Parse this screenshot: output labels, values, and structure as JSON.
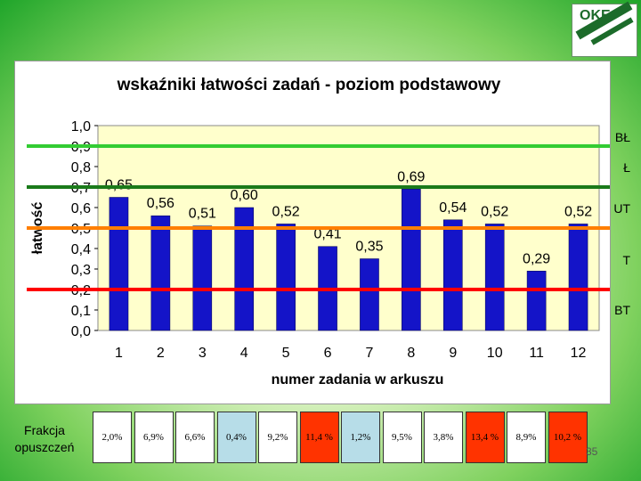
{
  "logo": {
    "text": "OKE"
  },
  "chart_data": {
    "type": "bar",
    "title": "wskaźniki łatwości zadań - poziom podstawowy",
    "xlabel": "numer zadania w arkuszu",
    "ylabel": "łatwość",
    "categories": [
      "1",
      "2",
      "3",
      "4",
      "5",
      "6",
      "7",
      "8",
      "9",
      "10",
      "11",
      "12"
    ],
    "values": [
      0.65,
      0.56,
      0.51,
      0.6,
      0.52,
      0.41,
      0.35,
      0.69,
      0.54,
      0.52,
      0.29,
      0.52
    ],
    "value_labels": [
      "0,65",
      "0,56",
      "0,51",
      "0,60",
      "0,52",
      "0,41",
      "0,35",
      "0,69",
      "0,54",
      "0,52",
      "0,29",
      "0,52"
    ],
    "ylim": [
      0,
      1.0
    ],
    "yticks": [
      "0,0",
      "0,1",
      "0,2",
      "0,3",
      "0,4",
      "0,5",
      "0,6",
      "0,7",
      "0,8",
      "0,9",
      "1,0"
    ],
    "grid": false,
    "bar_color": "#1414c8",
    "plot_background": "#ffffcc",
    "reference_lines": [
      {
        "value": 0.9,
        "color": "#33cc33"
      },
      {
        "value": 0.7,
        "color": "#1a7a1a"
      },
      {
        "value": 0.5,
        "color": "#ff7f00"
      },
      {
        "value": 0.2,
        "color": "#ff0000"
      }
    ]
  },
  "side_labels": [
    "BŁ",
    "Ł",
    "UT",
    "T",
    "BT"
  ],
  "fraction": {
    "label_line1": "Frakcja",
    "label_line2": "opuszczeń",
    "cells": [
      {
        "value": "2,0%",
        "color": "#ffffff"
      },
      {
        "value": "6,9%",
        "color": "#ffffff"
      },
      {
        "value": "6,6%",
        "color": "#ffffff"
      },
      {
        "value": "0,4%",
        "color": "#b7dde8"
      },
      {
        "value": "9,2%",
        "color": "#ffffff"
      },
      {
        "value": "11,4 %",
        "color": "#ff3300"
      },
      {
        "value": "1,2%",
        "color": "#b7dde8"
      },
      {
        "value": "9,5%",
        "color": "#ffffff"
      },
      {
        "value": "3,8%",
        "color": "#ffffff"
      },
      {
        "value": "13,4 %",
        "color": "#ff3300"
      },
      {
        "value": "8,9%",
        "color": "#ffffff"
      },
      {
        "value": "10,2 %",
        "color": "#ff3300"
      }
    ]
  },
  "page_number": "35"
}
